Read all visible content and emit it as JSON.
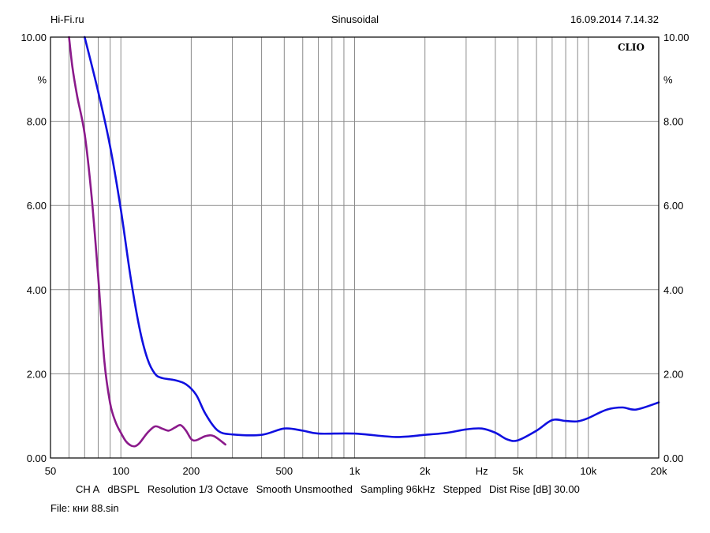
{
  "header": {
    "left": "Hi-Fi.ru",
    "center": "Sinusoidal",
    "right": "16.09.2014 7.14.32"
  },
  "brand": "CLIO",
  "footer": {
    "settings": [
      "CH A",
      "dBSPL",
      "Resolution 1/3 Octave",
      "Smooth Unsmoothed",
      "Sampling 96kHz",
      "Stepped",
      "Dist Rise [dB] 30.00"
    ],
    "file": "File: кни 88.sin"
  },
  "colors": {
    "series_blue": "#1010e0",
    "series_purple": "#8b1a8b",
    "grid": "#8a8a8a",
    "frame": "#000000"
  },
  "chart_data": {
    "type": "line",
    "xscale": "log",
    "xlim": [
      50,
      20000
    ],
    "ylim": [
      0,
      10
    ],
    "grid": true,
    "x_ticks": [
      {
        "value": 50,
        "label": "50"
      },
      {
        "value": 100,
        "label": "100"
      },
      {
        "value": 200,
        "label": "200"
      },
      {
        "value": 500,
        "label": "500"
      },
      {
        "value": 1000,
        "label": "1k"
      },
      {
        "value": 2000,
        "label": "2k"
      },
      {
        "value": 3500,
        "label": "Hz"
      },
      {
        "value": 5000,
        "label": "5k"
      },
      {
        "value": 10000,
        "label": "10k"
      },
      {
        "value": 20000,
        "label": "20k"
      }
    ],
    "y_ticks_left": [
      "0.00",
      "2.00",
      "4.00",
      "6.00",
      "8.00",
      "10.00"
    ],
    "y_ticks_right": [
      "0.00",
      "2.00",
      "4.00",
      "6.00",
      "8.00",
      "10.00"
    ],
    "y_unit": "%",
    "series": [
      {
        "color": "#1010e0",
        "x": [
          70,
          80,
          90,
          100,
          110,
          120,
          130,
          140,
          150,
          170,
          190,
          210,
          230,
          260,
          300,
          400,
          500,
          600,
          700,
          1000,
          1500,
          2000,
          2500,
          3000,
          3500,
          4000,
          4500,
          5000,
          6000,
          7000,
          8000,
          9000,
          10000,
          12000,
          14000,
          16000,
          20000
        ],
        "y": [
          10.0,
          8.7,
          7.4,
          5.9,
          4.3,
          3.1,
          2.35,
          2.0,
          1.9,
          1.85,
          1.75,
          1.5,
          1.05,
          0.65,
          0.56,
          0.55,
          0.7,
          0.65,
          0.58,
          0.58,
          0.5,
          0.55,
          0.6,
          0.68,
          0.7,
          0.6,
          0.44,
          0.42,
          0.65,
          0.9,
          0.88,
          0.87,
          0.95,
          1.15,
          1.2,
          1.15,
          1.32
        ]
      },
      {
        "color": "#8b1a8b",
        "x": [
          60,
          62,
          65,
          70,
          75,
          80,
          85,
          90,
          95,
          100,
          105,
          110,
          115,
          120,
          130,
          140,
          150,
          160,
          170,
          180,
          190,
          200,
          210,
          230,
          250,
          280
        ],
        "y": [
          10.0,
          9.3,
          8.6,
          7.7,
          6.2,
          4.3,
          2.3,
          1.3,
          0.85,
          0.6,
          0.4,
          0.3,
          0.28,
          0.35,
          0.6,
          0.75,
          0.7,
          0.65,
          0.72,
          0.78,
          0.65,
          0.45,
          0.42,
          0.52,
          0.52,
          0.32
        ]
      }
    ]
  }
}
